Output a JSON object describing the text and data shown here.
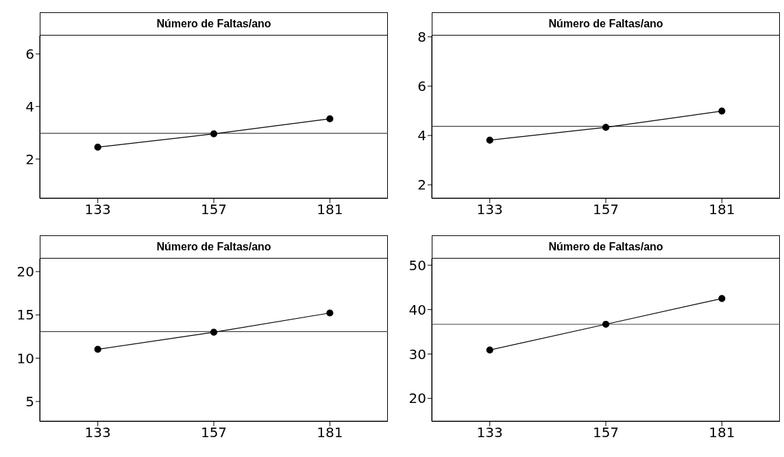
{
  "chart_data": [
    {
      "type": "line",
      "title": "Número de Faltas/ano",
      "categories": [
        "133",
        "157",
        "181"
      ],
      "series": [
        {
          "color": "#000000",
          "values": [
            2.45,
            2.96,
            3.53
          ]
        }
      ],
      "ylim": [
        0.5,
        6.7
      ],
      "yticks": [
        2,
        4,
        6
      ],
      "ref_lines": [
        {
          "axis": "y",
          "value": 2.98,
          "color": "#404040"
        }
      ],
      "marker": "circle",
      "line_style": "solid"
    },
    {
      "type": "line",
      "title": "Número de Faltas/ano",
      "categories": [
        "133",
        "157",
        "181"
      ],
      "series": [
        {
          "color": "#000000",
          "values": [
            3.81,
            4.33,
            4.99
          ]
        }
      ],
      "ylim": [
        1.45,
        8.05
      ],
      "yticks": [
        2,
        4,
        6,
        8
      ],
      "ref_lines": [
        {
          "axis": "y",
          "value": 4.37,
          "color": "#404040"
        }
      ],
      "marker": "circle",
      "line_style": "solid"
    },
    {
      "type": "line",
      "title": "Número de Faltas/ano",
      "categories": [
        "133",
        "157",
        "181"
      ],
      "series": [
        {
          "color": "#000000",
          "values": [
            11.03,
            13.0,
            15.22
          ]
        }
      ],
      "ylim": [
        2.7,
        21.5
      ],
      "yticks": [
        5,
        10,
        15,
        20
      ],
      "ref_lines": [
        {
          "axis": "y",
          "value": 13.08,
          "color": "#404040"
        }
      ],
      "marker": "circle",
      "line_style": "solid"
    },
    {
      "type": "line",
      "title": "Número de Faltas/ano",
      "categories": [
        "133",
        "157",
        "181"
      ],
      "series": [
        {
          "color": "#000000",
          "values": [
            30.9,
            36.7,
            42.5
          ]
        }
      ],
      "ylim": [
        14.8,
        51.5
      ],
      "yticks": [
        20,
        30,
        40,
        50
      ],
      "ref_lines": [
        {
          "axis": "y",
          "value": 36.7,
          "color": "#404040"
        }
      ],
      "marker": "circle",
      "line_style": "solid"
    }
  ]
}
